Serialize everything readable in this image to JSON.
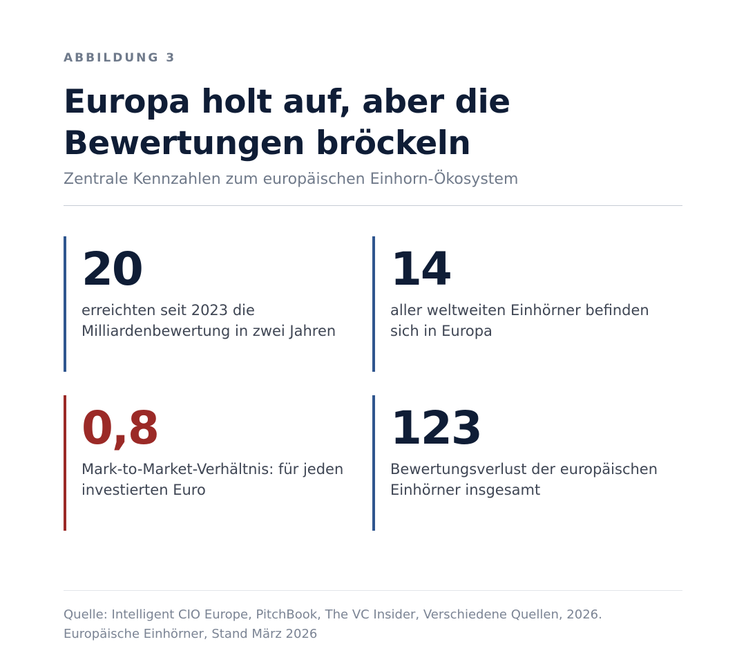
{
  "figure": {
    "label": "ABBILDUNG 3",
    "title": "Europa holt auf, aber die Bewertungen bröckeln",
    "subtitle": "Zentrale Kennzahlen zum europäischen Einhorn-Ökosystem"
  },
  "stats": [
    {
      "value": "20",
      "description": "erreichten seit 2023 die Milliardenbewertung in zwei Jahren",
      "accent_color": "#2f568f"
    },
    {
      "value": "14",
      "description": "aller weltweiten Einhörner befinden sich in Europa",
      "accent_color": "#2f568f"
    },
    {
      "value": "0,8",
      "description": "Mark-to-Market-Verhältnis: für jeden investierten Euro",
      "accent_color": "#9b2a27"
    },
    {
      "value": "123",
      "description": "Bewertungsverlust der europäischen Einhörner insgesamt",
      "accent_color": "#2f568f"
    }
  ],
  "source": {
    "line1": "Quelle: Intelligent CIO Europe, PitchBook, The VC Insider, Verschiedene Quellen, 2026.",
    "line2": "Europäische Einhörner, Stand März 2026"
  }
}
